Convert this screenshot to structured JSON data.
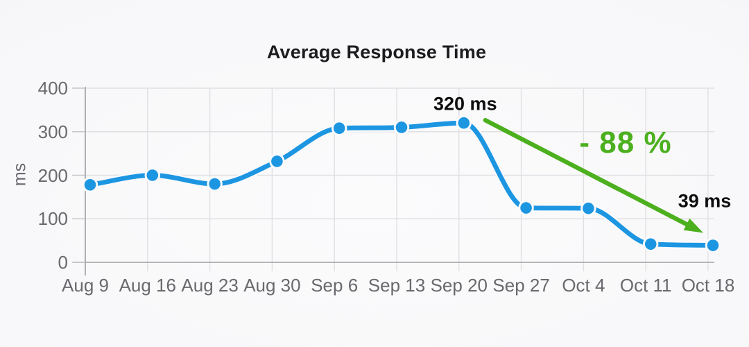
{
  "chart_data": {
    "type": "line",
    "title": "Average Response Time",
    "ylabel": "ms",
    "categories": [
      "Aug 9",
      "Aug 16",
      "Aug 23",
      "Aug 30",
      "Sep 6",
      "Sep 13",
      "Sep 20",
      "Sep 27",
      "Oct 4",
      "Oct 11",
      "Oct 18"
    ],
    "series": [
      {
        "name": "Average Response Time",
        "values": [
          178,
          200,
          180,
          232,
          308,
          310,
          320,
          125,
          124,
          42,
          39
        ]
      }
    ],
    "ylim": [
      0,
      400
    ],
    "yticks": [
      0,
      100,
      200,
      300,
      400
    ],
    "grid": true,
    "legend": "none",
    "annotations": {
      "peak_label": "320 ms",
      "end_label": "39 ms",
      "change_label": "- 88 %"
    }
  },
  "colors": {
    "line_blue": "#1d96e2",
    "arrow_green": "#4cb01e",
    "grid_line": "#e0e0e4",
    "axis_line": "#a2a2a8",
    "zero_line": "#ababaf",
    "tick_mark": "#c6c6cb",
    "tick_label": "#69696e",
    "title_text": "#1c1c1e",
    "annotation_text": "#0d0d0e",
    "background": "#f7f7f9",
    "point_halo": "#fafafc"
  }
}
